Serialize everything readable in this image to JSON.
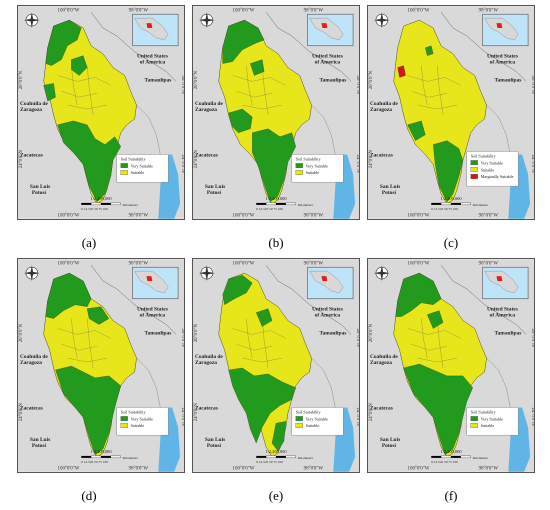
{
  "figure": {
    "panels": [
      {
        "id": "a",
        "caption": "(a)",
        "legend": {
          "title": "Soil Suitability",
          "items": [
            {
              "label": "Very Suitable",
              "color": "#229a1e"
            },
            {
              "label": "Suitable",
              "color": "#e6e61a"
            }
          ]
        }
      },
      {
        "id": "b",
        "caption": "(b)",
        "legend": {
          "title": "Soil Suitability",
          "items": [
            {
              "label": "Very Suitable",
              "color": "#229a1e"
            },
            {
              "label": "Suitable",
              "color": "#e6e61a"
            }
          ]
        }
      },
      {
        "id": "c",
        "caption": "(c)",
        "legend": {
          "title": "Soil Suitability",
          "items": [
            {
              "label": "Very Suitable",
              "color": "#229a1e"
            },
            {
              "label": "Suitable",
              "color": "#e6e61a"
            },
            {
              "label": "Marginally Suitable",
              "color": "#e01010"
            }
          ]
        }
      },
      {
        "id": "d",
        "caption": "(d)",
        "legend": {
          "title": "Soil Suitability",
          "items": [
            {
              "label": "Very Suitable",
              "color": "#229a1e"
            },
            {
              "label": "Suitable",
              "color": "#e6e61a"
            }
          ]
        }
      },
      {
        "id": "e",
        "caption": "(e)",
        "legend": {
          "title": "Soil Suitability",
          "items": [
            {
              "label": "Very Suitable",
              "color": "#229a1e"
            },
            {
              "label": "Suitable",
              "color": "#e6e61a"
            }
          ]
        }
      },
      {
        "id": "f",
        "caption": "(f)",
        "legend": {
          "title": "Soil Suitability",
          "items": [
            {
              "label": "Very Suitable",
              "color": "#229a1e"
            },
            {
              "label": "Suitable",
              "color": "#e6e61a"
            }
          ]
        }
      }
    ],
    "map_labels": {
      "country": "United States of America",
      "tamaulipas": "Tamaulipas",
      "coahuila": "Coahuila de Zaragoza",
      "zacatecas": "Zacatecas",
      "sanluis": "San Luis Potosí",
      "lon_west": "100°0'0\"W",
      "lon_east": "98°0'0\"W",
      "lat_north": "26°0'0\"N",
      "lat_south": "24°0'0\"N",
      "scale": "1:2,200,000",
      "scale_ticks": "0 12.525   50    75    100",
      "scale_unit": "Kilometers"
    },
    "colors": {
      "very_suitable": "#229a1e",
      "suitable": "#e6e61a",
      "marginally_suitable": "#e01010",
      "background": "#d9d9d9",
      "water": "#5fb6e6"
    }
  }
}
